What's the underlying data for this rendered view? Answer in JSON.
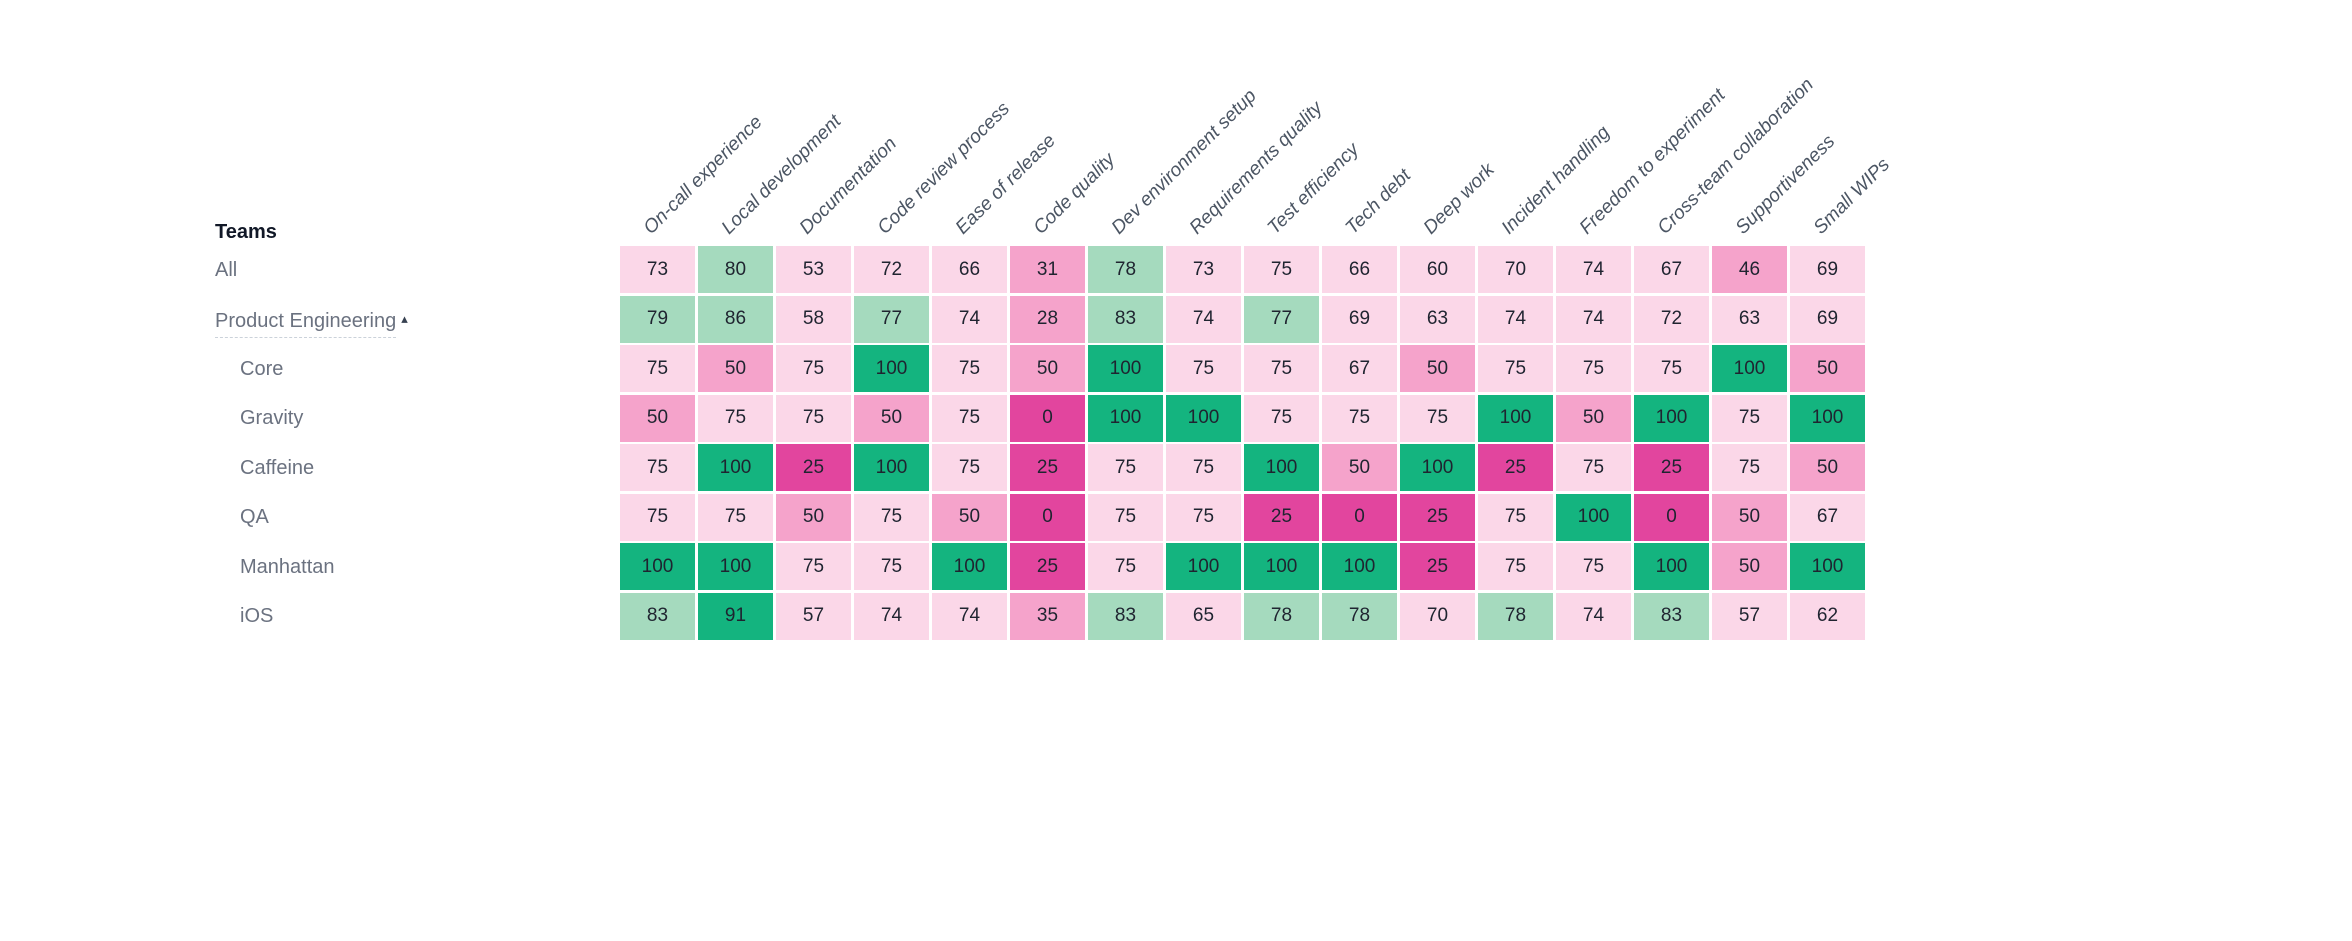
{
  "teams_panel": {
    "title": "Teams",
    "expand_caret_icon": "▴"
  },
  "colors": {
    "background": "#ffffff",
    "title_text": "#111827",
    "row_label_text": "#6b7280",
    "column_header_text": "#4b5563",
    "cell_text": "#1f2430"
  },
  "chart_data": {
    "type": "heatmap",
    "value_range": [
      0,
      100
    ],
    "legend": "none",
    "columns": [
      "On-call experience",
      "Local development",
      "Documentation",
      "Code review process",
      "Ease of release",
      "Code quality",
      "Dev environment setup",
      "Requirements quality",
      "Test efficiency",
      "Tech debt",
      "Deep work",
      "Incident handling",
      "Freedom to experiment",
      "Cross-team collaboration",
      "Supportiveness",
      "Small WIPs"
    ],
    "rows": [
      {
        "label": "All",
        "indent": 0,
        "collapsible": false,
        "values": [
          73,
          80,
          53,
          72,
          66,
          31,
          78,
          73,
          75,
          66,
          60,
          70,
          74,
          67,
          46,
          69
        ]
      },
      {
        "label": "Product Engineering",
        "indent": 0,
        "collapsible": true,
        "expanded": true,
        "values": [
          79,
          86,
          58,
          77,
          74,
          28,
          83,
          74,
          77,
          69,
          63,
          74,
          74,
          72,
          63,
          69
        ]
      },
      {
        "label": "Core",
        "indent": 1,
        "collapsible": false,
        "values": [
          75,
          50,
          75,
          100,
          75,
          50,
          100,
          75,
          75,
          67,
          50,
          75,
          75,
          75,
          100,
          50
        ]
      },
      {
        "label": "Gravity",
        "indent": 1,
        "collapsible": false,
        "values": [
          50,
          75,
          75,
          50,
          75,
          0,
          100,
          100,
          75,
          75,
          75,
          100,
          50,
          100,
          75,
          100
        ]
      },
      {
        "label": "Caffeine",
        "indent": 1,
        "collapsible": false,
        "values": [
          75,
          100,
          25,
          100,
          75,
          25,
          75,
          75,
          100,
          50,
          100,
          25,
          75,
          25,
          75,
          50
        ]
      },
      {
        "label": "QA",
        "indent": 1,
        "collapsible": false,
        "values": [
          75,
          75,
          50,
          75,
          50,
          0,
          75,
          75,
          25,
          0,
          25,
          75,
          100,
          0,
          50,
          67
        ]
      },
      {
        "label": "Manhattan",
        "indent": 1,
        "collapsible": false,
        "values": [
          100,
          100,
          75,
          75,
          100,
          25,
          75,
          100,
          100,
          100,
          25,
          75,
          75,
          100,
          50,
          100
        ]
      },
      {
        "label": "iOS",
        "indent": 1,
        "collapsible": false,
        "values": [
          83,
          91,
          57,
          74,
          74,
          35,
          83,
          65,
          78,
          78,
          70,
          78,
          74,
          83,
          57,
          62
        ]
      }
    ],
    "colorscale": [
      {
        "max": 25,
        "color": "#e2459e"
      },
      {
        "max": 50,
        "color": "#f5a3cb"
      },
      {
        "max": 75,
        "color": "#fbd7e8"
      },
      {
        "max": 87,
        "color": "#a5dabe"
      },
      {
        "max": 100,
        "color": "#14b47f"
      }
    ]
  }
}
